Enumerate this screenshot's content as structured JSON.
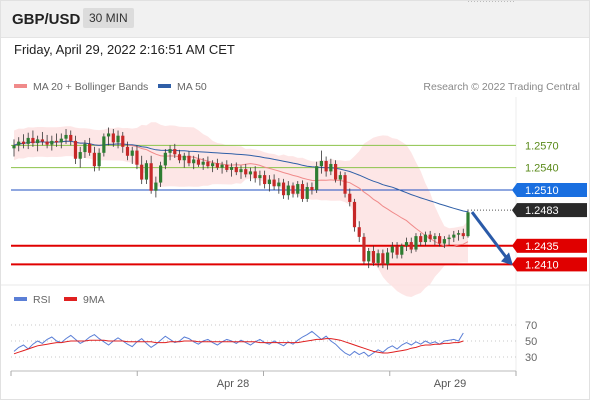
{
  "header": {
    "pair": "GBP/USD",
    "timeframe": "30 MIN"
  },
  "datetime": "Friday, April 29, 2022 2:16:51 AM CET",
  "legend": {
    "ma20": {
      "label": "MA 20 + Bollinger Bands",
      "color": "#f08a8a"
    },
    "ma50": {
      "label": "MA 50",
      "color": "#2f5fa7"
    },
    "rsi": {
      "label": "RSI",
      "color": "#5b7fd6"
    },
    "ma9": {
      "label": "9MA",
      "color": "#e02020"
    }
  },
  "credit": "Research © 2022 Trading Central",
  "colors": {
    "up": "#2e7d32",
    "down": "#c62828",
    "support": "#e00000",
    "resistance": "#8bc34a",
    "pivot": "#1f4fc0",
    "arrow": "#2a5aa8",
    "band": "#fde2e2"
  },
  "chart_data": [
    {
      "type": "candlestick",
      "title": "GBP/USD",
      "price_range": [
        1.2385,
        1.2635
      ],
      "x_ticks": [
        "Apr 28",
        "Apr 29"
      ],
      "current_price": {
        "value": 1.2483,
        "label": "1.2483"
      },
      "levels": [
        {
          "value": 1.257,
          "label": "1.2570",
          "kind": "resistance"
        },
        {
          "value": 1.254,
          "label": "1.2540",
          "kind": "resistance"
        },
        {
          "value": 1.251,
          "label": "1.2510",
          "kind": "pivot"
        },
        {
          "value": 1.2435,
          "label": "1.2435",
          "kind": "support"
        },
        {
          "value": 1.241,
          "label": "1.2410",
          "kind": "support"
        }
      ],
      "ohlc": [
        [
          1.2566,
          1.2578,
          1.2555,
          1.257
        ],
        [
          1.257,
          1.2581,
          1.2562,
          1.2575
        ],
        [
          1.2575,
          1.2585,
          1.2566,
          1.2572
        ],
        [
          1.2572,
          1.2587,
          1.2565,
          1.258
        ],
        [
          1.258,
          1.259,
          1.2568,
          1.2573
        ],
        [
          1.2573,
          1.2583,
          1.2562,
          1.2578
        ],
        [
          1.2578,
          1.2588,
          1.257,
          1.2575
        ],
        [
          1.2575,
          1.2584,
          1.2566,
          1.2571
        ],
        [
          1.2571,
          1.2583,
          1.2563,
          1.2576
        ],
        [
          1.2576,
          1.2586,
          1.2568,
          1.2574
        ],
        [
          1.2574,
          1.2586,
          1.2566,
          1.2579
        ],
        [
          1.2579,
          1.2592,
          1.2572,
          1.2584
        ],
        [
          1.2584,
          1.259,
          1.257,
          1.2576
        ],
        [
          1.2576,
          1.2583,
          1.2545,
          1.2552
        ],
        [
          1.2552,
          1.2568,
          1.254,
          1.2561
        ],
        [
          1.2561,
          1.2577,
          1.2553,
          1.2572
        ],
        [
          1.2572,
          1.258,
          1.2556,
          1.256
        ],
        [
          1.256,
          1.2568,
          1.2535,
          1.2542
        ],
        [
          1.2542,
          1.2566,
          1.2536,
          1.256
        ],
        [
          1.256,
          1.2586,
          1.2555,
          1.2582
        ],
        [
          1.2582,
          1.2594,
          1.257,
          1.2586
        ],
        [
          1.2586,
          1.2592,
          1.2568,
          1.2574
        ],
        [
          1.2574,
          1.259,
          1.2566,
          1.2583
        ],
        [
          1.2583,
          1.2588,
          1.256,
          1.2568
        ],
        [
          1.2568,
          1.2575,
          1.255,
          1.2556
        ],
        [
          1.2556,
          1.2568,
          1.2545,
          1.2563
        ],
        [
          1.2563,
          1.257,
          1.2538,
          1.2544
        ],
        [
          1.2544,
          1.2556,
          1.2518,
          1.2524
        ],
        [
          1.2524,
          1.255,
          1.2518,
          1.2546
        ],
        [
          1.2546,
          1.2556,
          1.2505,
          1.2509
        ],
        [
          1.2509,
          1.2528,
          1.25,
          1.252
        ],
        [
          1.252,
          1.2548,
          1.2514,
          1.2543
        ],
        [
          1.2543,
          1.2565,
          1.2538,
          1.256
        ],
        [
          1.256,
          1.257,
          1.255,
          1.2565
        ],
        [
          1.2565,
          1.2572,
          1.2553,
          1.2558
        ],
        [
          1.2558,
          1.2564,
          1.2546,
          1.255
        ],
        [
          1.255,
          1.256,
          1.254,
          1.2556
        ],
        [
          1.2556,
          1.2562,
          1.2542,
          1.2546
        ],
        [
          1.2546,
          1.2556,
          1.2538,
          1.2551
        ],
        [
          1.2551,
          1.2558,
          1.2541,
          1.2544
        ],
        [
          1.2544,
          1.2553,
          1.2537,
          1.2548
        ],
        [
          1.2548,
          1.2555,
          1.2539,
          1.2542
        ],
        [
          1.2542,
          1.255,
          1.2534,
          1.2546
        ],
        [
          1.2546,
          1.2552,
          1.2537,
          1.254
        ],
        [
          1.254,
          1.2548,
          1.2532,
          1.2544
        ],
        [
          1.2544,
          1.255,
          1.2534,
          1.2537
        ],
        [
          1.2537,
          1.2546,
          1.2528,
          1.2541
        ],
        [
          1.2541,
          1.2547,
          1.253,
          1.2534
        ],
        [
          1.2534,
          1.2543,
          1.2525,
          1.2538
        ],
        [
          1.2538,
          1.2545,
          1.2527,
          1.2531
        ],
        [
          1.2531,
          1.254,
          1.2522,
          1.2535
        ],
        [
          1.2535,
          1.2542,
          1.252,
          1.2526
        ],
        [
          1.2526,
          1.2536,
          1.2516,
          1.253
        ],
        [
          1.253,
          1.2536,
          1.2512,
          1.2518
        ],
        [
          1.2518,
          1.253,
          1.2508,
          1.2524
        ],
        [
          1.2524,
          1.2531,
          1.251,
          1.2515
        ],
        [
          1.2515,
          1.2526,
          1.2505,
          1.252
        ],
        [
          1.252,
          1.2525,
          1.2498,
          1.2503
        ],
        [
          1.2503,
          1.2522,
          1.2497,
          1.2516
        ],
        [
          1.2516,
          1.252,
          1.25,
          1.2505
        ],
        [
          1.2505,
          1.2522,
          1.25,
          1.2518
        ],
        [
          1.2518,
          1.2523,
          1.2494,
          1.2498
        ],
        [
          1.2498,
          1.252,
          1.2494,
          1.2514
        ],
        [
          1.2514,
          1.252,
          1.2504,
          1.251
        ],
        [
          1.251,
          1.2548,
          1.2506,
          1.2542
        ],
        [
          1.2542,
          1.2563,
          1.2532,
          1.2549
        ],
        [
          1.2549,
          1.2555,
          1.2528,
          1.2535
        ],
        [
          1.2535,
          1.2552,
          1.253,
          1.2545
        ],
        [
          1.2545,
          1.255,
          1.252,
          1.2524
        ],
        [
          1.2524,
          1.2535,
          1.2516,
          1.253
        ],
        [
          1.253,
          1.2534,
          1.25,
          1.2505
        ],
        [
          1.2505,
          1.2512,
          1.2488,
          1.2494
        ],
        [
          1.2494,
          1.2498,
          1.2454,
          1.246
        ],
        [
          1.246,
          1.2468,
          1.244,
          1.2447
        ],
        [
          1.2447,
          1.2452,
          1.241,
          1.2414
        ],
        [
          1.2414,
          1.2432,
          1.2405,
          1.2428
        ],
        [
          1.2428,
          1.2435,
          1.2408,
          1.2412
        ],
        [
          1.2412,
          1.243,
          1.2406,
          1.2425
        ],
        [
          1.2425,
          1.243,
          1.2405,
          1.241
        ],
        [
          1.241,
          1.2432,
          1.2403,
          1.2426
        ],
        [
          1.2426,
          1.244,
          1.2418,
          1.2434
        ],
        [
          1.2434,
          1.244,
          1.2418,
          1.2423
        ],
        [
          1.2423,
          1.2438,
          1.2418,
          1.2435
        ],
        [
          1.2435,
          1.2446,
          1.2428,
          1.244
        ],
        [
          1.244,
          1.2446,
          1.2425,
          1.243
        ],
        [
          1.243,
          1.2452,
          1.2427,
          1.2448
        ],
        [
          1.2448,
          1.2452,
          1.2435,
          1.244
        ],
        [
          1.244,
          1.2454,
          1.2435,
          1.245
        ],
        [
          1.245,
          1.2455,
          1.244,
          1.2444
        ],
        [
          1.2444,
          1.2452,
          1.2436,
          1.2448
        ],
        [
          1.2448,
          1.2452,
          1.2434,
          1.2438
        ],
        [
          1.2438,
          1.2448,
          1.2432,
          1.2444
        ],
        [
          1.2444,
          1.245,
          1.2436,
          1.2446
        ],
        [
          1.2446,
          1.2455,
          1.244,
          1.245
        ],
        [
          1.245,
          1.2456,
          1.2442,
          1.2452
        ],
        [
          1.2452,
          1.2458,
          1.2444,
          1.2448
        ],
        [
          1.2448,
          1.2484,
          1.2446,
          1.248
        ]
      ]
    },
    {
      "type": "line",
      "title": "RSI",
      "y_range": [
        15,
        85
      ],
      "y_ticks": [
        30,
        50,
        70
      ],
      "x_ticks": [
        "Apr 28",
        "Apr 29"
      ],
      "series": [
        {
          "name": "RSI",
          "values": [
            37,
            42,
            45,
            40,
            46,
            50,
            47,
            52,
            55,
            50,
            48,
            53,
            57,
            52,
            47,
            50,
            55,
            58,
            53,
            49,
            45,
            50,
            54,
            50,
            46,
            43,
            49,
            53,
            47,
            42,
            46,
            51,
            56,
            52,
            48,
            50,
            55,
            53,
            49,
            46,
            50,
            52,
            48,
            45,
            49,
            52,
            50,
            47,
            51,
            48,
            45,
            49,
            52,
            48,
            46,
            50,
            47,
            44,
            49,
            46,
            51,
            55,
            58,
            62,
            57,
            52,
            56,
            50,
            46,
            40,
            35,
            32,
            37,
            33,
            36,
            31,
            35,
            39,
            36,
            41,
            44,
            40,
            45,
            48,
            45,
            49,
            46,
            50,
            47,
            49,
            46,
            50,
            51,
            52,
            50,
            60
          ]
        },
        {
          "name": "9MA",
          "values": [
            34,
            36,
            38,
            40,
            42,
            44,
            45,
            46,
            47,
            48,
            48,
            49,
            50,
            50,
            50,
            50,
            51,
            51,
            51,
            51,
            50,
            50,
            50,
            50,
            49,
            49,
            49,
            49,
            49,
            49,
            48,
            48,
            48,
            49,
            49,
            49,
            50,
            50,
            50,
            49,
            49,
            49,
            49,
            49,
            49,
            49,
            49,
            49,
            49,
            49,
            49,
            49,
            48,
            48,
            48,
            48,
            48,
            48,
            48,
            48,
            48,
            49,
            50,
            51,
            52,
            52,
            53,
            53,
            52,
            51,
            49,
            47,
            45,
            43,
            41,
            39,
            37,
            36,
            35,
            35,
            36,
            37,
            38,
            39,
            41,
            42,
            44,
            45,
            45,
            46,
            46,
            47,
            47,
            48,
            48,
            50
          ]
        }
      ]
    }
  ]
}
